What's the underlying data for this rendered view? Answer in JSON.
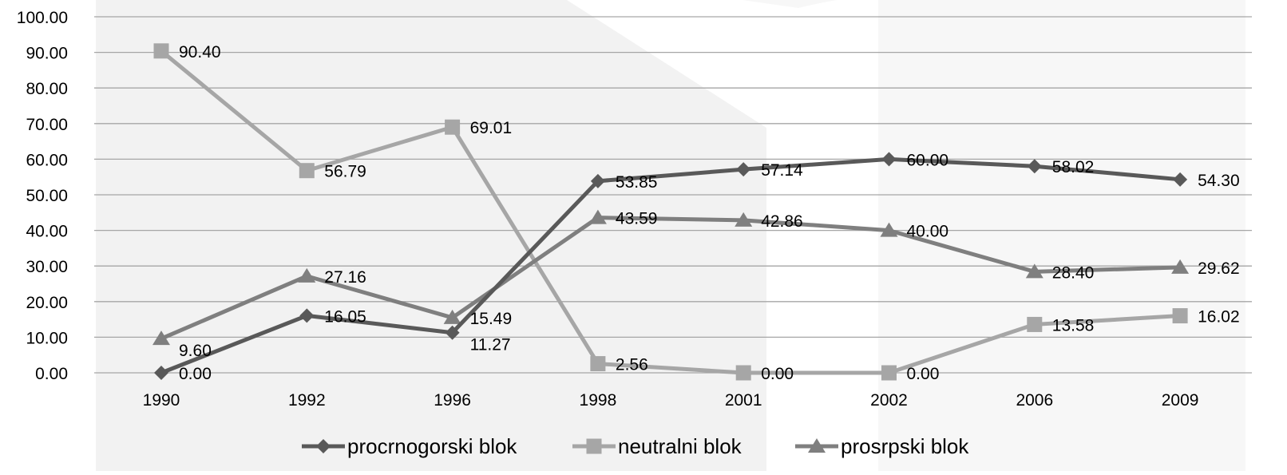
{
  "chart_data": {
    "type": "line",
    "title": "",
    "xlabel": "",
    "ylabel": "",
    "categories": [
      "1990",
      "1992",
      "1996",
      "1998",
      "2001",
      "2002",
      "2006",
      "2009"
    ],
    "ylim": [
      0,
      100
    ],
    "yticks": [
      "0.00",
      "10.00",
      "20.00",
      "30.00",
      "40.00",
      "50.00",
      "60.00",
      "70.00",
      "80.00",
      "90.00",
      "100.00"
    ],
    "grid": true,
    "legend_position": "bottom",
    "series": [
      {
        "name": "procrnogorski blok",
        "marker": "diamond",
        "color": "#595959",
        "values": [
          0.0,
          16.05,
          11.27,
          53.85,
          57.14,
          60.0,
          58.02,
          54.3
        ],
        "labels": [
          "0.00",
          "16.05",
          "11.27",
          "53.85",
          "57.14",
          "60.00",
          "58.02",
          "54.30"
        ]
      },
      {
        "name": "neutralni blok",
        "marker": "square",
        "color": "#a6a6a6",
        "values": [
          90.4,
          56.79,
          69.01,
          2.56,
          0.0,
          0.0,
          13.58,
          16.02
        ],
        "labels": [
          "90.40",
          "56.79",
          "69.01",
          "2.56",
          "0.00",
          "0.00",
          "13.58",
          "16.02"
        ]
      },
      {
        "name": "prosrpski blok",
        "marker": "triangle",
        "color": "#7f7f7f",
        "values": [
          9.6,
          27.16,
          15.49,
          43.59,
          42.86,
          40.0,
          28.4,
          29.62
        ],
        "labels": [
          "9.60",
          "27.16",
          "15.49",
          "43.59",
          "42.86",
          "40.00",
          "28.40",
          "29.62"
        ]
      }
    ]
  },
  "colors": {
    "grid": "#a6a6a6",
    "axis_text": "#000000",
    "watermark": "#f2f2f2"
  }
}
